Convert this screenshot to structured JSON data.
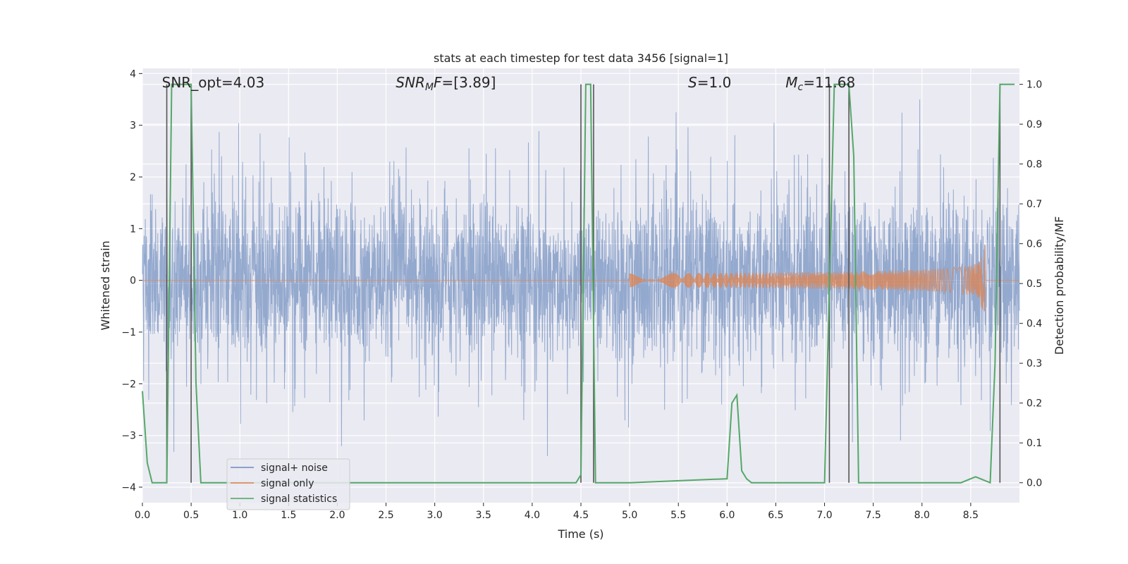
{
  "chart_data": {
    "type": "line",
    "title": "stats at each timestep for test data 3456 [signal=1]",
    "xlabel": "Time (s)",
    "ylabel": "Whitened strain",
    "y2label": "Detection probability/MF",
    "xlim": [
      0.0,
      9.0
    ],
    "ylim": [
      -4.3,
      4.1
    ],
    "y2lim": [
      -0.05,
      1.04
    ],
    "x_ticks": [
      "0.0",
      "0.5",
      "1.0",
      "1.5",
      "2.0",
      "2.5",
      "3.0",
      "3.5",
      "4.0",
      "4.5",
      "5.0",
      "5.5",
      "6.0",
      "6.5",
      "7.0",
      "7.5",
      "8.0",
      "8.5"
    ],
    "y_ticks": [
      "4",
      "3",
      "2",
      "1",
      "0",
      "−1",
      "−2",
      "−3",
      "−4"
    ],
    "y2_ticks": [
      "1.0",
      "0.9",
      "0.8",
      "0.7",
      "0.6",
      "0.5",
      "0.4",
      "0.3",
      "0.2",
      "0.1",
      "0.0"
    ],
    "grid": true,
    "legend_position": "lower-left",
    "annotations": [
      {
        "text": "SNR_opt=4.03",
        "x": 0.2
      },
      {
        "text": "SNR_MF=[3.89]",
        "x": 2.6,
        "math": "mf"
      },
      {
        "text": "S=1.0",
        "x": 5.6,
        "math": "s"
      },
      {
        "text": "M_c=11.68",
        "x": 6.6,
        "math": "mc"
      }
    ],
    "series": [
      {
        "name": "signal+ noise",
        "axis": "left",
        "color": "#4c72b0",
        "style": "noise",
        "band_std": 0.85,
        "x_range": [
          0.0,
          9.0
        ]
      },
      {
        "name": "signal only",
        "axis": "left",
        "color": "#dd8452",
        "style": "chirp",
        "chirp_start": 5.0,
        "chirp_peak": 8.65,
        "peak_amplitude": 0.5
      },
      {
        "name": "signal statistics",
        "axis": "right",
        "color": "#55a868",
        "style": "line",
        "x": [
          0.0,
          0.05,
          0.1,
          0.15,
          0.2,
          0.25,
          0.3,
          0.35,
          0.4,
          0.45,
          0.5,
          0.55,
          0.6,
          0.65,
          0.7,
          1.0,
          2.0,
          3.0,
          4.0,
          4.45,
          4.5,
          4.55,
          4.6,
          4.65,
          4.7,
          4.75,
          5.0,
          6.0,
          6.05,
          6.1,
          6.15,
          6.2,
          6.25,
          6.3,
          6.4,
          6.5,
          7.0,
          7.05,
          7.1,
          7.15,
          7.2,
          7.25,
          7.3,
          7.35,
          7.4,
          7.45,
          8.0,
          8.4,
          8.5,
          8.55,
          8.6,
          8.65,
          8.7,
          8.75,
          8.8,
          8.85,
          8.9,
          8.95
        ],
        "y": [
          0.23,
          0.05,
          0.0,
          0.0,
          0.0,
          0.0,
          1.0,
          1.0,
          1.0,
          1.0,
          1.0,
          0.25,
          0.0,
          0.0,
          0.0,
          0.0,
          0.0,
          0.0,
          0.0,
          0.0,
          0.02,
          1.0,
          1.0,
          0.0,
          0.0,
          0.0,
          0.0,
          0.01,
          0.2,
          0.22,
          0.03,
          0.01,
          0.0,
          0.0,
          0.0,
          0.0,
          0.0,
          0.5,
          1.0,
          1.0,
          1.0,
          1.0,
          0.82,
          0.0,
          0.0,
          0.0,
          0.0,
          0.0,
          0.01,
          0.015,
          0.01,
          0.005,
          0.0,
          0.3,
          1.0,
          1.0,
          1.0,
          1.0
        ]
      }
    ],
    "markers": {
      "color": "#555555",
      "x": [
        0.25,
        0.5,
        4.5,
        4.63,
        7.05,
        7.25,
        8.8
      ],
      "y2_range": [
        0.0,
        1.0
      ]
    }
  }
}
